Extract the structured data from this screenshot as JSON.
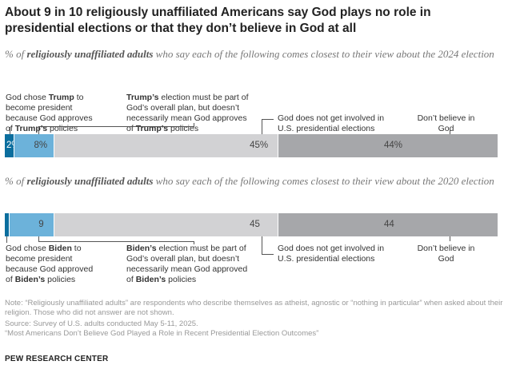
{
  "title": "About 9 in 10 religiously unaffiliated Americans say God plays no role in presidential elections or that they don’t believe in God at all",
  "chart_data": [
    {
      "type": "bar",
      "orientation": "horizontal-stacked",
      "subtitle_pre": "% of ",
      "subtitle_bold": "religiously unaffiliated adults",
      "subtitle_post": " who say each of the following comes closest to their view about the 2024 election",
      "categories": [
        "God chose Trump to become president because God approves of Trump’s policies",
        "Trump’s election must be part of God’s overall plan, but doesn’t necessarily mean God approves of Trump’s policies",
        "God does not get involved in U.S. presidential elections",
        "Don’t believe in God"
      ],
      "values": [
        2,
        8,
        45,
        44
      ],
      "value_labels": [
        "2%",
        "8%",
        "45%",
        "44%"
      ],
      "colors": [
        "#0b6e9e",
        "#6cb2da",
        "#d2d2d4",
        "#a6a7aa"
      ]
    },
    {
      "type": "bar",
      "orientation": "horizontal-stacked",
      "subtitle_pre": "% of ",
      "subtitle_bold": "religiously unaffiliated adults",
      "subtitle_post": " who say each of the following comes closest to their view about the 2020 election",
      "categories": [
        "God chose Biden to become president because God approved of Biden’s policies",
        "Biden’s election must be part of God’s overall plan, but doesn’t necessarily mean God approved of Biden’s policies",
        "God does not get involved in U.S. presidential elections",
        "Don’t believe in God"
      ],
      "values": [
        1,
        9,
        45,
        44
      ],
      "value_labels": [
        "",
        "9",
        "45",
        "44"
      ],
      "colors": [
        "#0b6e9e",
        "#6cb2da",
        "#d2d2d4",
        "#a6a7aa"
      ]
    }
  ],
  "notes": {
    "note": "Note: “Religiously unaffiliated adults” are respondents who describe themselves as atheist, agnostic or “nothing in particular” when asked about their religion. Those who did not answer are not shown.",
    "source": "Source: Survey of U.S. adults conducted May 5-11, 2025.",
    "report": "“Most Americans Don’t Believe God Played a Role in Recent Presidential Election Outcomes”"
  },
  "brand": "PEW RESEARCH CENTER"
}
